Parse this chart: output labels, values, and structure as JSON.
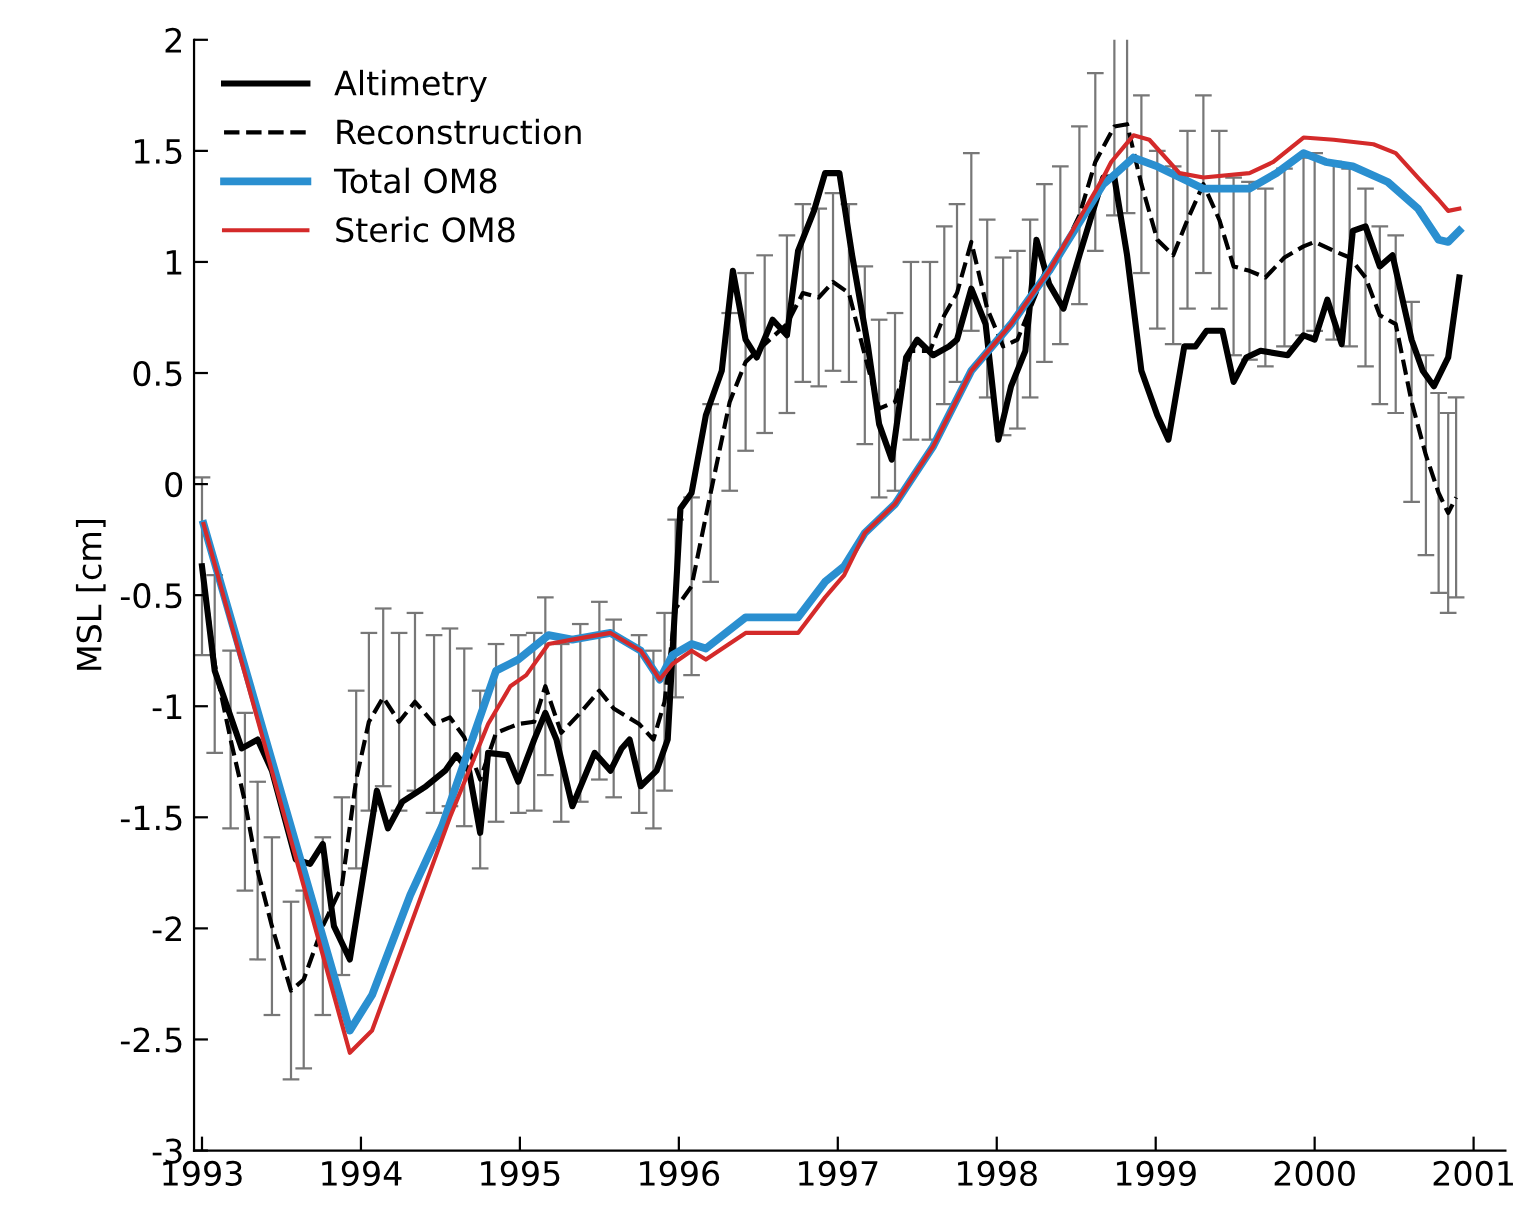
{
  "chart_data": {
    "type": "line",
    "ylabel": "MSL [cm]",
    "xlim": [
      1992.95,
      2001.2
    ],
    "ylim": [
      -3,
      2
    ],
    "xticks": [
      1993,
      1994,
      1995,
      1996,
      1997,
      1998,
      1999,
      2000,
      2001
    ],
    "yticks": [
      -3,
      -2.5,
      -2,
      -1.5,
      -1,
      -0.5,
      0,
      0.5,
      1,
      1.5,
      2
    ],
    "grid": false,
    "legend": "top left",
    "series": [
      {
        "name": "Altimetry",
        "color": "#000000",
        "line_style": "solid",
        "x": [
          1993.0,
          1993.08,
          1993.25,
          1993.35,
          1993.44,
          1993.59,
          1993.68,
          1993.76,
          1993.83,
          1993.93,
          1994.1,
          1994.17,
          1994.26,
          1994.41,
          1994.53,
          1994.6,
          1994.68,
          1994.75,
          1994.8,
          1994.92,
          1994.99,
          1995.09,
          1995.16,
          1995.23,
          1995.33,
          1995.47,
          1995.57,
          1995.64,
          1995.69,
          1995.76,
          1995.86,
          1995.93,
          1996.01,
          1996.08,
          1996.17,
          1996.27,
          1996.34,
          1996.42,
          1996.49,
          1996.59,
          1996.68,
          1996.75,
          1996.85,
          1996.92,
          1997.01,
          1997.09,
          1997.19,
          1997.26,
          1997.34,
          1997.43,
          1997.5,
          1997.6,
          1997.7,
          1997.75,
          1997.84,
          1997.93,
          1998.01,
          1998.09,
          1998.18,
          1998.25,
          1998.33,
          1998.42,
          1998.52,
          1998.67,
          1998.74,
          1998.82,
          1998.91,
          1999.01,
          1999.08,
          1999.18,
          1999.25,
          1999.32,
          1999.42,
          1999.49,
          1999.57,
          1999.66,
          1999.83,
          1999.93,
          2000.0,
          2000.08,
          2000.17,
          2000.24,
          2000.32,
          2000.41,
          2000.49,
          2000.61,
          2000.68,
          2000.75,
          2000.84,
          2000.91
        ],
        "values": [
          -0.37,
          -0.84,
          -1.19,
          -1.15,
          -1.29,
          -1.69,
          -1.71,
          -1.62,
          -1.99,
          -2.14,
          -1.38,
          -1.55,
          -1.43,
          -1.36,
          -1.29,
          -1.22,
          -1.29,
          -1.57,
          -1.21,
          -1.22,
          -1.34,
          -1.15,
          -1.03,
          -1.15,
          -1.45,
          -1.21,
          -1.29,
          -1.19,
          -1.15,
          -1.36,
          -1.29,
          -1.15,
          -0.11,
          -0.04,
          0.31,
          0.51,
          0.96,
          0.65,
          0.57,
          0.74,
          0.67,
          1.05,
          1.23,
          1.4,
          1.4,
          1.03,
          0.62,
          0.27,
          0.11,
          0.57,
          0.65,
          0.58,
          0.62,
          0.65,
          0.88,
          0.72,
          0.2,
          0.44,
          0.6,
          1.1,
          0.9,
          0.79,
          1.03,
          1.38,
          1.38,
          1.03,
          0.51,
          0.31,
          0.2,
          0.62,
          0.62,
          0.69,
          0.69,
          0.46,
          0.57,
          0.6,
          0.58,
          0.67,
          0.65,
          0.83,
          0.63,
          1.14,
          1.16,
          0.98,
          1.03,
          0.65,
          0.51,
          0.44,
          0.57,
          0.93
        ]
      },
      {
        "name": "Reconstruction",
        "color": "#000000",
        "line_style": "dashed",
        "x": [
          1993.0,
          1993.08,
          1993.18,
          1993.27,
          1993.35,
          1993.44,
          1993.56,
          1993.64,
          1993.76,
          1993.88,
          1993.97,
          1994.05,
          1994.14,
          1994.24,
          1994.34,
          1994.46,
          1994.56,
          1994.65,
          1994.75,
          1994.85,
          1994.99,
          1995.09,
          1995.16,
          1995.26,
          1995.38,
          1995.5,
          1995.59,
          1995.75,
          1995.84,
          1995.91,
          1995.98,
          1996.08,
          1996.2,
          1996.32,
          1996.42,
          1996.54,
          1996.68,
          1996.78,
          1996.88,
          1996.97,
          1997.07,
          1997.17,
          1997.26,
          1997.36,
          1997.46,
          1997.58,
          1997.67,
          1997.75,
          1997.84,
          1997.94,
          1998.04,
          1998.13,
          1998.21,
          1998.3,
          1998.4,
          1998.52,
          1998.62,
          1998.74,
          1998.82,
          1998.91,
          1999.01,
          1999.11,
          1999.2,
          1999.3,
          1999.4,
          1999.49,
          1999.59,
          1999.69,
          1999.81,
          1999.93,
          2000.0,
          2000.12,
          2000.22,
          2000.32,
          2000.41,
          2000.51,
          2000.61,
          2000.7,
          2000.78,
          2000.84,
          2000.89
        ],
        "values": [
          -0.37,
          -0.81,
          -1.15,
          -1.43,
          -1.74,
          -1.99,
          -2.28,
          -2.23,
          -1.99,
          -1.81,
          -1.33,
          -1.07,
          -0.96,
          -1.07,
          -0.98,
          -1.08,
          -1.05,
          -1.14,
          -1.33,
          -1.12,
          -1.08,
          -1.07,
          -0.91,
          -1.12,
          -1.03,
          -0.93,
          -1.01,
          -1.08,
          -1.15,
          -0.98,
          -0.56,
          -0.46,
          -0.04,
          0.37,
          0.55,
          0.63,
          0.72,
          0.86,
          0.84,
          0.91,
          0.86,
          0.58,
          0.34,
          0.37,
          0.6,
          0.6,
          0.76,
          0.86,
          1.09,
          0.79,
          0.62,
          0.65,
          0.79,
          0.95,
          1.03,
          1.21,
          1.45,
          1.61,
          1.62,
          1.35,
          1.1,
          1.03,
          1.19,
          1.35,
          1.19,
          0.98,
          0.96,
          0.93,
          1.02,
          1.07,
          1.09,
          1.05,
          1.02,
          0.93,
          0.76,
          0.72,
          0.37,
          0.13,
          -0.04,
          -0.13,
          -0.06
        ],
        "errors": [
          0.4,
          0.4,
          0.4,
          0.4,
          0.4,
          0.4,
          0.4,
          0.4,
          0.4,
          0.4,
          0.4,
          0.4,
          0.4,
          0.4,
          0.4,
          0.4,
          0.4,
          0.4,
          0.4,
          0.4,
          0.4,
          0.4,
          0.4,
          0.4,
          0.4,
          0.4,
          0.4,
          0.4,
          0.4,
          0.4,
          0.4,
          0.4,
          0.4,
          0.4,
          0.4,
          0.4,
          0.4,
          0.4,
          0.4,
          0.4,
          0.4,
          0.4,
          0.4,
          0.4,
          0.4,
          0.4,
          0.4,
          0.4,
          0.4,
          0.4,
          0.4,
          0.4,
          0.4,
          0.4,
          0.4,
          0.4,
          0.4,
          0.4,
          0.4,
          0.4,
          0.4,
          0.4,
          0.4,
          0.4,
          0.4,
          0.4,
          0.4,
          0.4,
          0.4,
          0.4,
          0.4,
          0.4,
          0.4,
          0.4,
          0.4,
          0.4,
          0.45,
          0.45,
          0.45,
          0.45,
          0.45
        ]
      },
      {
        "name": "Total OM8",
        "color": "#2a8fd0",
        "line_style": "solid",
        "x": [
          1993.01,
          1993.93,
          1994.07,
          1994.31,
          1994.51,
          1994.7,
          1994.85,
          1994.99,
          1995.18,
          1995.33,
          1995.57,
          1995.76,
          1995.88,
          1995.96,
          1996.08,
          1996.17,
          1996.42,
          1996.75,
          1996.92,
          1997.04,
          1997.17,
          1997.36,
          1997.6,
          1997.84,
          1998.09,
          1998.33,
          1998.67,
          1998.72,
          1998.86,
          1999.01,
          1999.3,
          1999.59,
          1999.76,
          1999.93,
          2000.07,
          2000.24,
          2000.46,
          2000.65,
          2000.78,
          2000.84,
          2000.91
        ],
        "values": [
          -0.18,
          -2.46,
          -2.3,
          -1.85,
          -1.54,
          -1.15,
          -0.84,
          -0.79,
          -0.68,
          -0.7,
          -0.67,
          -0.75,
          -0.88,
          -0.77,
          -0.72,
          -0.74,
          -0.6,
          -0.6,
          -0.44,
          -0.37,
          -0.22,
          -0.09,
          0.17,
          0.51,
          0.72,
          0.96,
          1.35,
          1.38,
          1.47,
          1.43,
          1.33,
          1.33,
          1.4,
          1.49,
          1.45,
          1.43,
          1.36,
          1.24,
          1.1,
          1.09,
          1.14
        ]
      },
      {
        "name": "Steric OM8",
        "color": "#d42a2a",
        "line_style": "solid",
        "x": [
          1993.01,
          1993.93,
          1994.07,
          1994.31,
          1994.56,
          1994.8,
          1994.94,
          1995.04,
          1995.18,
          1995.33,
          1995.57,
          1995.76,
          1995.88,
          1995.96,
          1996.08,
          1996.17,
          1996.42,
          1996.75,
          1996.92,
          1997.04,
          1997.17,
          1997.36,
          1997.6,
          1997.84,
          1998.09,
          1998.33,
          1998.67,
          1998.72,
          1998.86,
          1998.96,
          1999.15,
          1999.3,
          1999.59,
          1999.74,
          1999.93,
          2000.12,
          2000.37,
          2000.51,
          2000.65,
          2000.78,
          2000.84,
          2000.91
        ],
        "values": [
          -0.18,
          -2.56,
          -2.46,
          -1.99,
          -1.5,
          -1.08,
          -0.91,
          -0.86,
          -0.72,
          -0.7,
          -0.67,
          -0.75,
          -0.88,
          -0.81,
          -0.75,
          -0.79,
          -0.67,
          -0.67,
          -0.51,
          -0.41,
          -0.22,
          -0.09,
          0.17,
          0.51,
          0.72,
          0.96,
          1.38,
          1.45,
          1.57,
          1.55,
          1.4,
          1.38,
          1.4,
          1.45,
          1.56,
          1.55,
          1.53,
          1.49,
          1.38,
          1.28,
          1.23,
          1.24
        ]
      }
    ]
  }
}
